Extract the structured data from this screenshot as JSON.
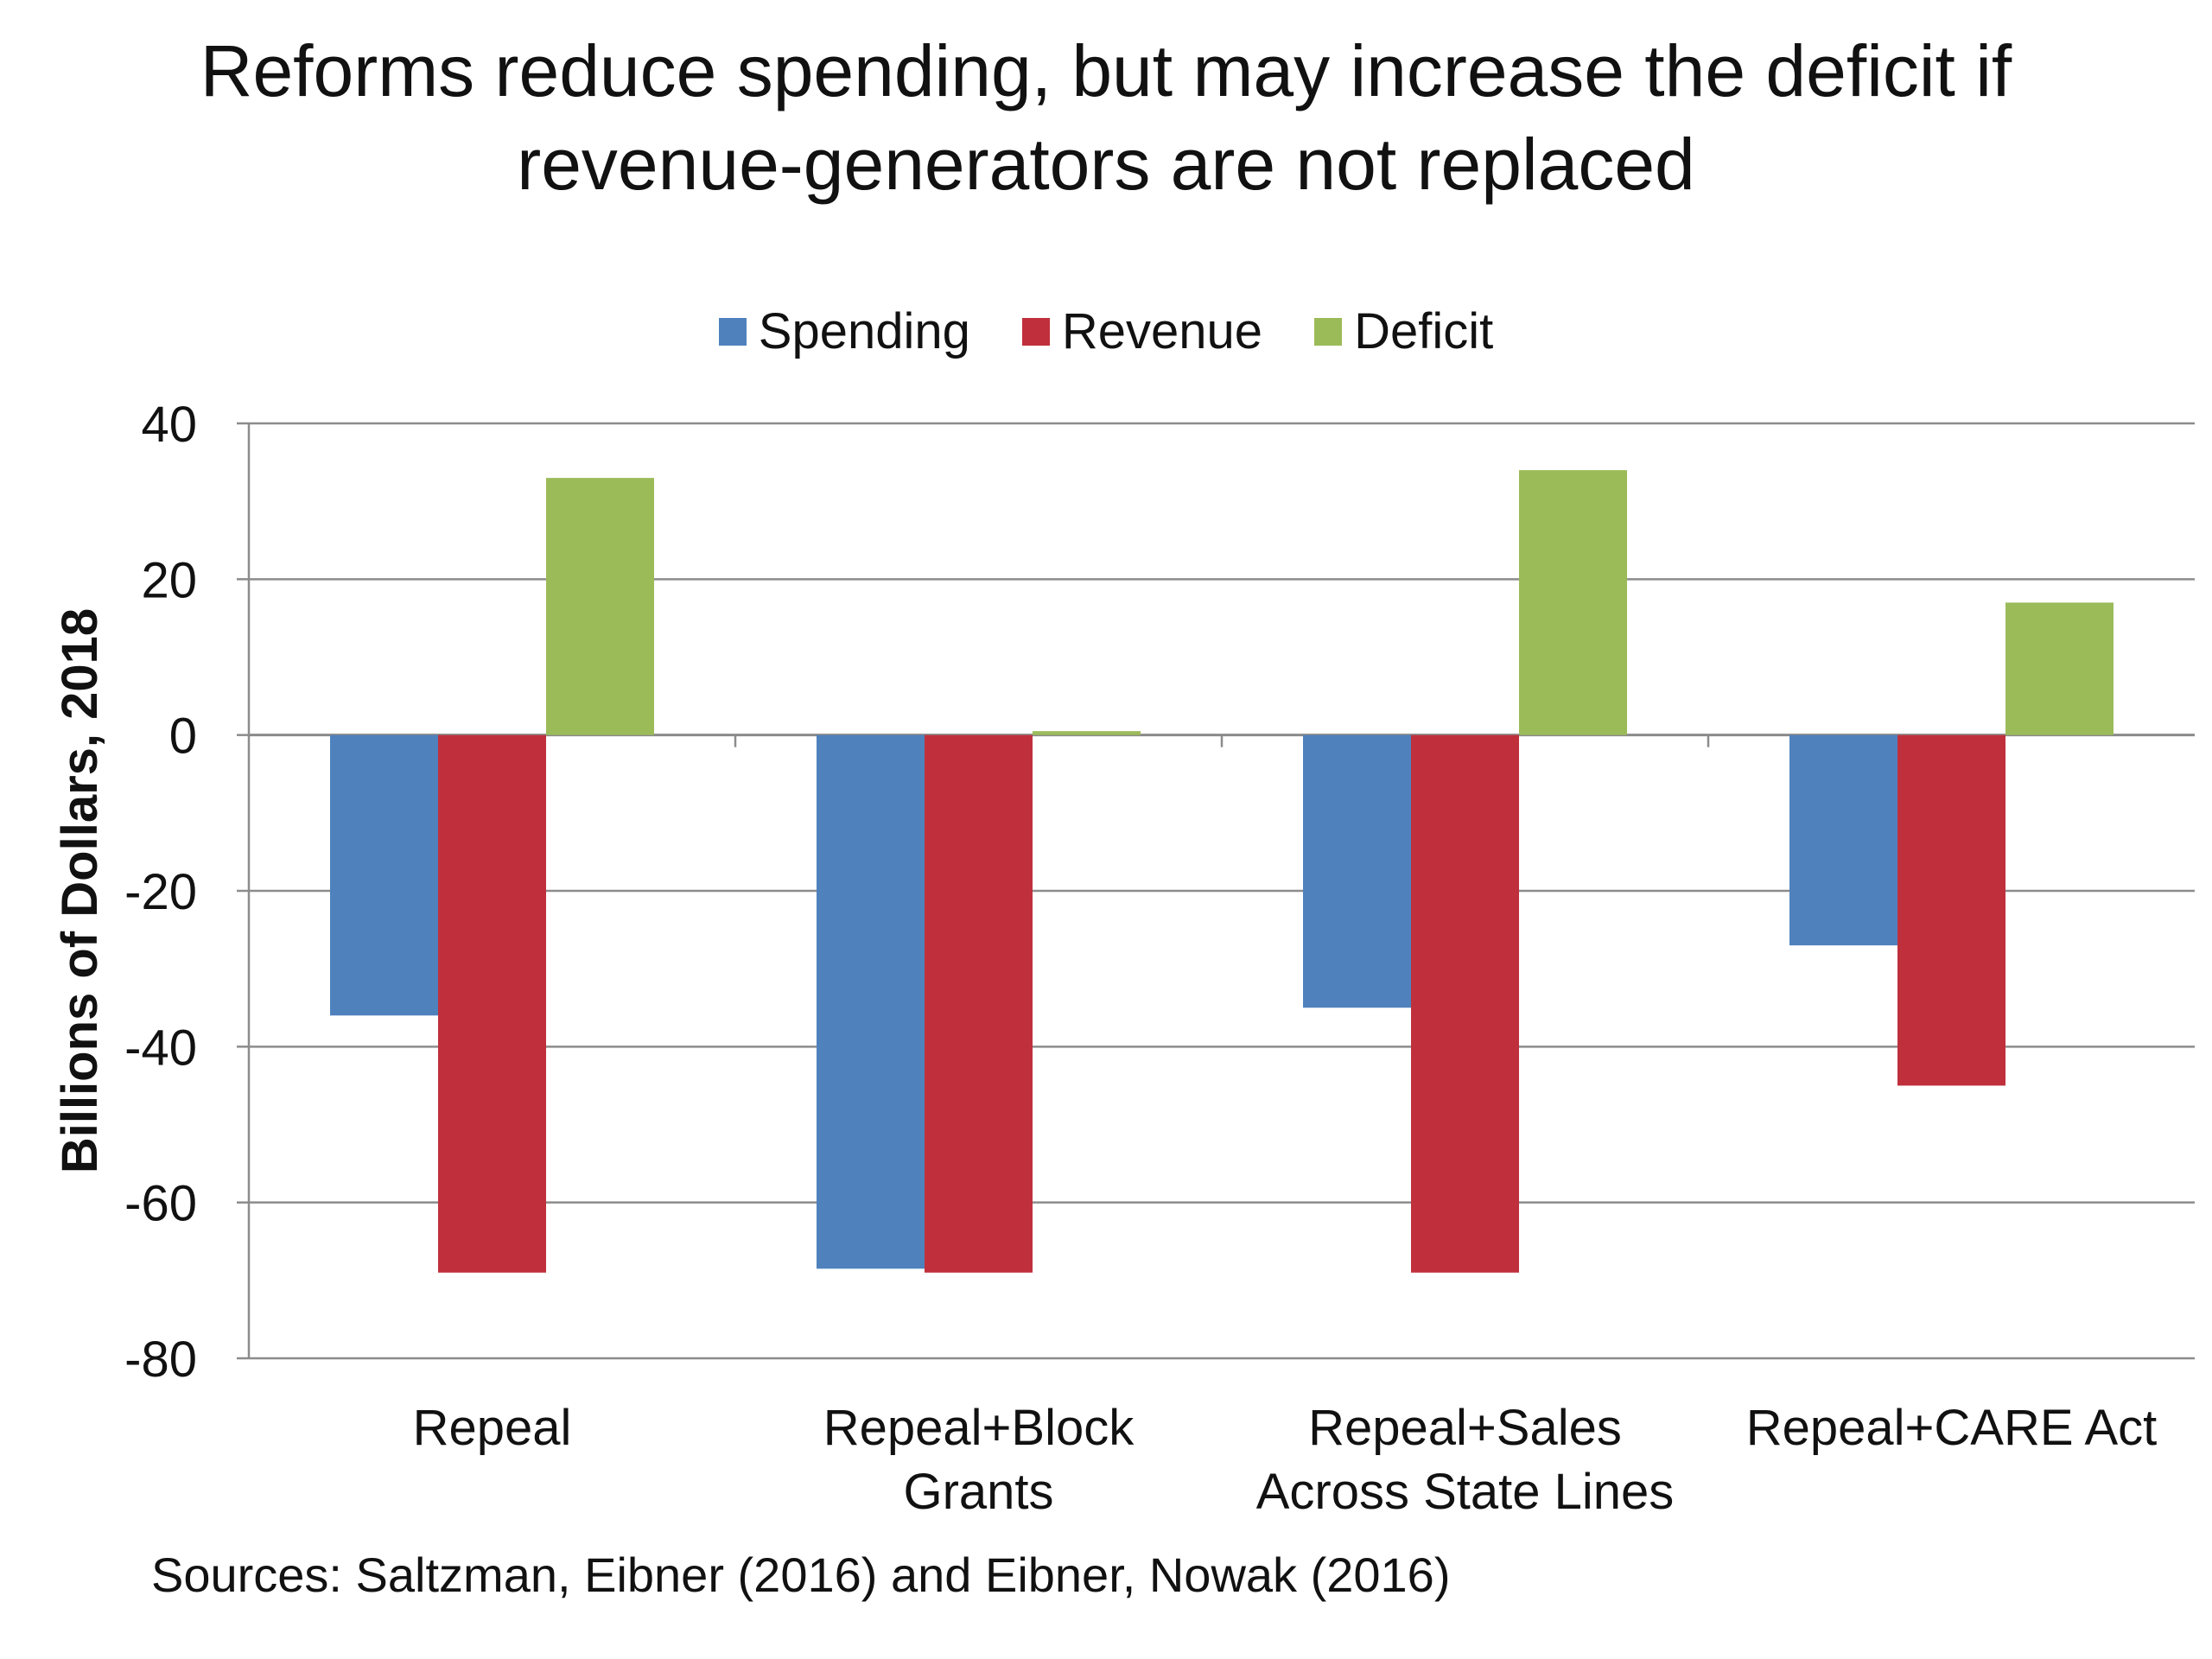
{
  "chart_data": {
    "type": "bar",
    "title": "Reforms reduce spending, but may increase the deficit if",
    "title_line2": "revenue-generators are not replaced",
    "ylabel": "Billions of Dollars, 2018",
    "ylim": [
      -80,
      40
    ],
    "yticks": [
      40,
      20,
      0,
      -20,
      -40,
      -60,
      -80
    ],
    "grid": true,
    "legend_position": "top-center",
    "categories": [
      [
        "Repeal"
      ],
      [
        "Repeal+Block",
        "Grants"
      ],
      [
        "Repeal+Sales",
        "Across State Lines"
      ],
      [
        "Repeal+CARE Act"
      ]
    ],
    "series": [
      {
        "name": "Spending",
        "color": "#4F81BD",
        "values": [
          -36,
          -68.5,
          -35,
          -27
        ]
      },
      {
        "name": "Revenue",
        "color": "#C0303C",
        "values": [
          -69,
          -69,
          -69,
          -45
        ]
      },
      {
        "name": "Deficit",
        "color": "#9BBB59",
        "values": [
          33,
          0.5,
          34,
          17
        ]
      }
    ]
  },
  "source_note": "Sources: Saltzman, Eibner (2016) and Eibner, Nowak (2016)"
}
